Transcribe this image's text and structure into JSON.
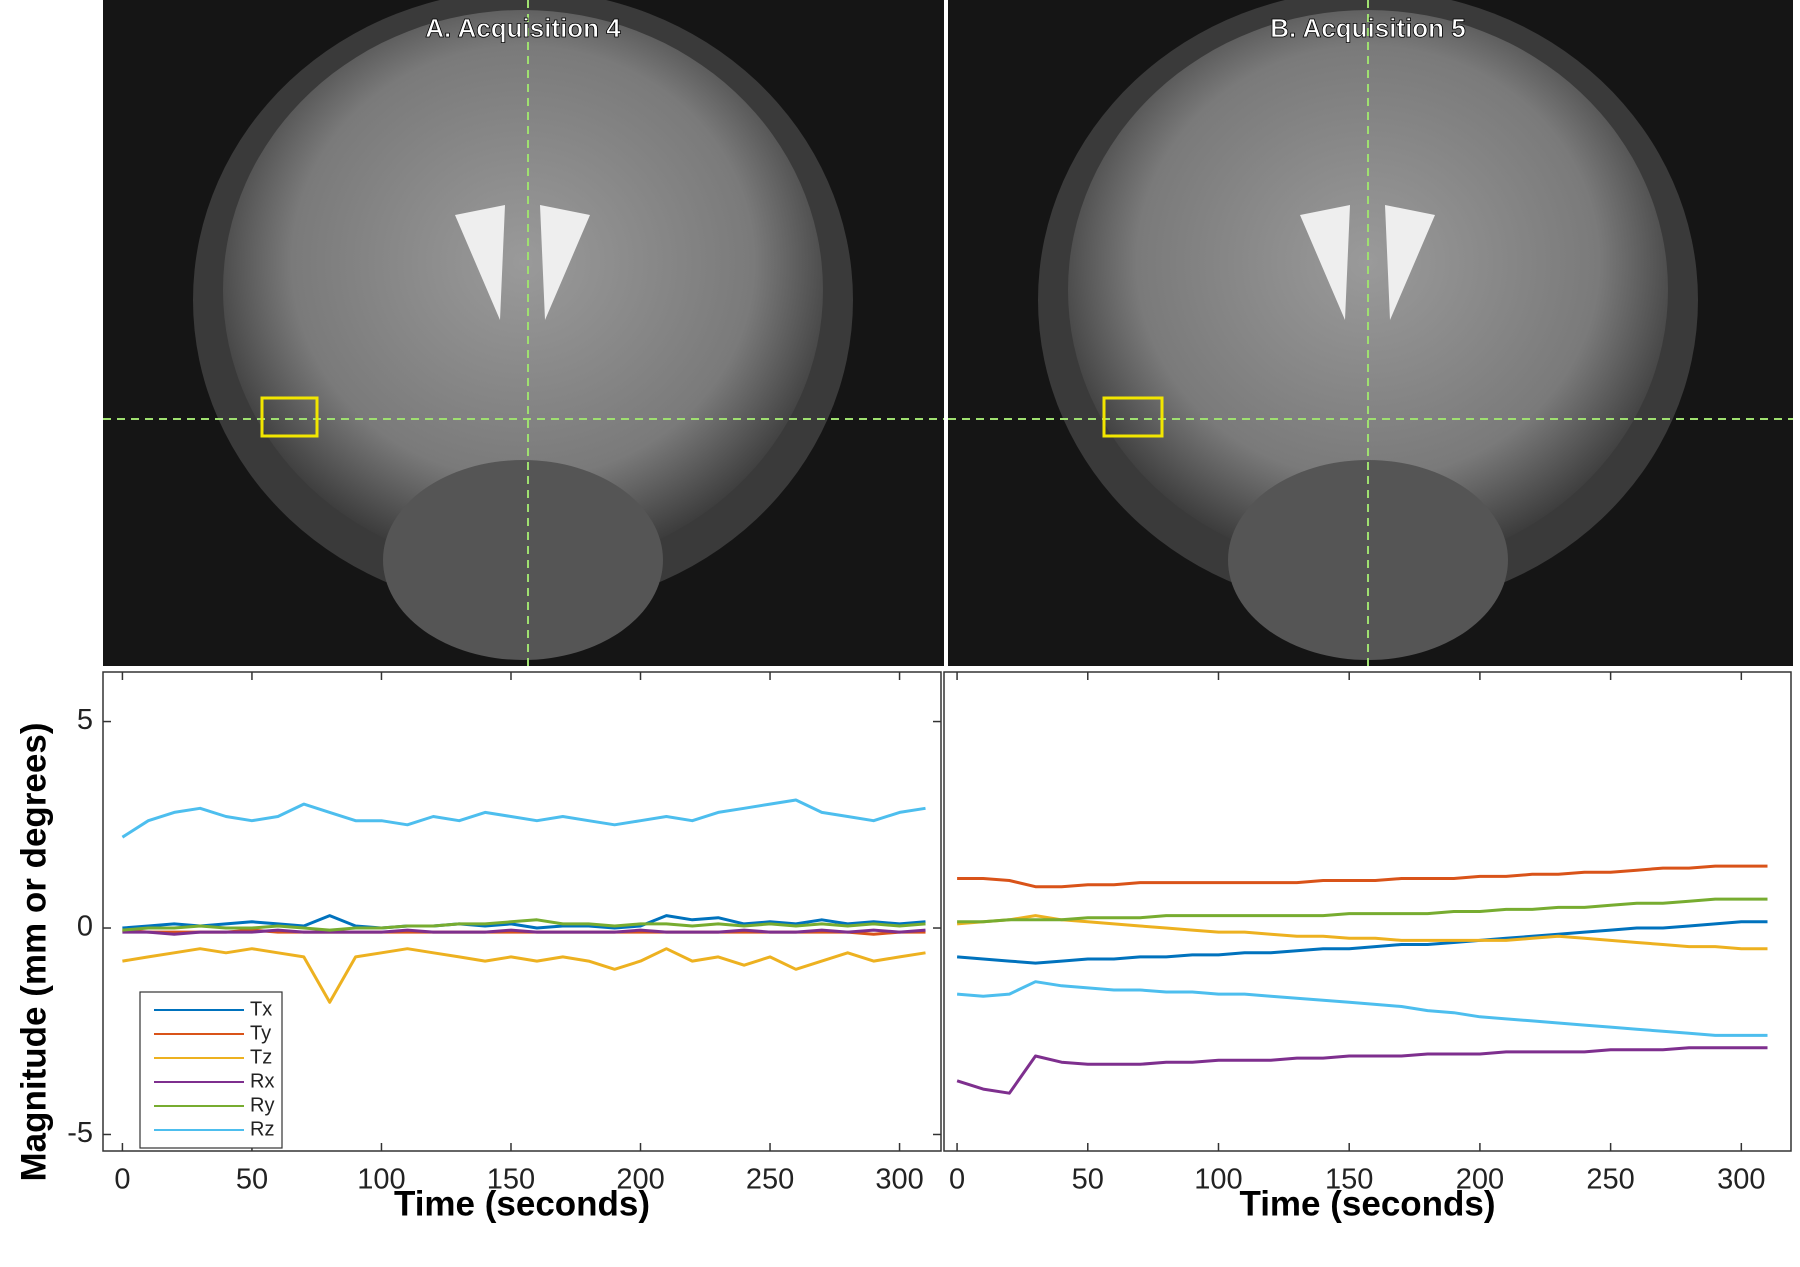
{
  "images": [
    {
      "title": "A. Acquisition 4"
    },
    {
      "title": "B. Acquisition 5"
    }
  ],
  "chart_data": [
    {
      "type": "line",
      "ylabel": "Magnitude (mm or degrees)",
      "xlabel": "Time (seconds)",
      "xlim": [
        -7.5,
        316
      ],
      "xticks": [
        0,
        50,
        100,
        150,
        200,
        250,
        300
      ],
      "ylim": [
        -5.4,
        6.2
      ],
      "yticks": [
        -5,
        0,
        5
      ],
      "legend": "lower left",
      "x": [
        0,
        10,
        20,
        30,
        40,
        50,
        60,
        70,
        80,
        90,
        100,
        110,
        120,
        130,
        140,
        150,
        160,
        170,
        180,
        190,
        200,
        210,
        220,
        230,
        240,
        250,
        260,
        270,
        280,
        290,
        300,
        310
      ],
      "series": [
        {
          "name": "Tx",
          "color": "#0072bd",
          "values": [
            0,
            0.05,
            0.1,
            0.05,
            0.1,
            0.15,
            0.1,
            0.05,
            0.3,
            0.05,
            0,
            0.05,
            0.05,
            0.1,
            0.05,
            0.1,
            0,
            0.05,
            0.05,
            0,
            0.05,
            0.3,
            0.2,
            0.25,
            0.1,
            0.15,
            0.1,
            0.2,
            0.1,
            0.15,
            0.1,
            0.15
          ]
        },
        {
          "name": "Ty",
          "color": "#d95319",
          "values": [
            -0.05,
            -0.1,
            -0.1,
            -0.1,
            -0.1,
            -0.05,
            -0.1,
            -0.1,
            -0.1,
            -0.1,
            -0.1,
            -0.1,
            -0.1,
            -0.1,
            -0.1,
            -0.1,
            -0.1,
            -0.1,
            -0.1,
            -0.1,
            -0.1,
            -0.1,
            -0.1,
            -0.1,
            -0.1,
            -0.1,
            -0.1,
            -0.1,
            -0.1,
            -0.15,
            -0.1,
            -0.1
          ]
        },
        {
          "name": "Tz",
          "color": "#edb120",
          "values": [
            -0.8,
            -0.7,
            -0.6,
            -0.5,
            -0.6,
            -0.5,
            -0.6,
            -0.7,
            -1.8,
            -0.7,
            -0.6,
            -0.5,
            -0.6,
            -0.7,
            -0.8,
            -0.7,
            -0.8,
            -0.7,
            -0.8,
            -1.0,
            -0.8,
            -0.5,
            -0.8,
            -0.7,
            -0.9,
            -0.7,
            -1.0,
            -0.8,
            -0.6,
            -0.8,
            -0.7,
            -0.6
          ]
        },
        {
          "name": "Rx",
          "color": "#7e2f8e",
          "values": [
            -0.1,
            -0.1,
            -0.15,
            -0.1,
            -0.1,
            -0.1,
            -0.05,
            -0.1,
            -0.1,
            -0.1,
            -0.1,
            -0.05,
            -0.1,
            -0.1,
            -0.1,
            -0.05,
            -0.1,
            -0.1,
            -0.1,
            -0.1,
            -0.05,
            -0.1,
            -0.1,
            -0.1,
            -0.05,
            -0.1,
            -0.1,
            -0.05,
            -0.1,
            -0.05,
            -0.1,
            -0.05
          ]
        },
        {
          "name": "Ry",
          "color": "#77ac30",
          "values": [
            -0.05,
            0,
            0,
            0.05,
            0,
            0,
            0.05,
            0,
            -0.05,
            0,
            0,
            0.05,
            0.05,
            0.1,
            0.1,
            0.15,
            0.2,
            0.1,
            0.1,
            0.05,
            0.1,
            0.1,
            0.05,
            0.1,
            0.05,
            0.1,
            0.05,
            0.1,
            0.05,
            0.1,
            0.05,
            0.1
          ]
        },
        {
          "name": "Rz",
          "color": "#4dbeee",
          "values": [
            2.2,
            2.6,
            2.8,
            2.9,
            2.7,
            2.6,
            2.7,
            3.0,
            2.8,
            2.6,
            2.6,
            2.5,
            2.7,
            2.6,
            2.8,
            2.7,
            2.6,
            2.7,
            2.6,
            2.5,
            2.6,
            2.7,
            2.6,
            2.8,
            2.9,
            3.0,
            3.1,
            2.8,
            2.7,
            2.6,
            2.8,
            2.9
          ]
        }
      ]
    },
    {
      "type": "line",
      "xlabel": "Time (seconds)",
      "xlim": [
        -5,
        319
      ],
      "xticks": [
        0,
        50,
        100,
        150,
        200,
        250,
        300
      ],
      "ylim": [
        -5.4,
        6.2
      ],
      "x": [
        0,
        10,
        20,
        30,
        40,
        50,
        60,
        70,
        80,
        90,
        100,
        110,
        120,
        130,
        140,
        150,
        160,
        170,
        180,
        190,
        200,
        210,
        220,
        230,
        240,
        250,
        260,
        270,
        280,
        290,
        300,
        310
      ],
      "series": [
        {
          "color": "#0072bd",
          "values": [
            -0.7,
            -0.75,
            -0.8,
            -0.85,
            -0.8,
            -0.75,
            -0.75,
            -0.7,
            -0.7,
            -0.65,
            -0.65,
            -0.6,
            -0.6,
            -0.55,
            -0.5,
            -0.5,
            -0.45,
            -0.4,
            -0.4,
            -0.35,
            -0.3,
            -0.25,
            -0.2,
            -0.15,
            -0.1,
            -0.05,
            0,
            0,
            0.05,
            0.1,
            0.15,
            0.15
          ]
        },
        {
          "color": "#d95319",
          "values": [
            1.2,
            1.2,
            1.15,
            1.0,
            1.0,
            1.05,
            1.05,
            1.1,
            1.1,
            1.1,
            1.1,
            1.1,
            1.1,
            1.1,
            1.15,
            1.15,
            1.15,
            1.2,
            1.2,
            1.2,
            1.25,
            1.25,
            1.3,
            1.3,
            1.35,
            1.35,
            1.4,
            1.45,
            1.45,
            1.5,
            1.5,
            1.5
          ]
        },
        {
          "color": "#edb120",
          "values": [
            0.1,
            0.15,
            0.2,
            0.3,
            0.2,
            0.15,
            0.1,
            0.05,
            0,
            -0.05,
            -0.1,
            -0.1,
            -0.15,
            -0.2,
            -0.2,
            -0.25,
            -0.25,
            -0.3,
            -0.3,
            -0.3,
            -0.3,
            -0.3,
            -0.25,
            -0.2,
            -0.25,
            -0.3,
            -0.35,
            -0.4,
            -0.45,
            -0.45,
            -0.5,
            -0.5
          ]
        },
        {
          "color": "#7e2f8e",
          "values": [
            -3.7,
            -3.9,
            -4.0,
            -3.1,
            -3.25,
            -3.3,
            -3.3,
            -3.3,
            -3.25,
            -3.25,
            -3.2,
            -3.2,
            -3.2,
            -3.15,
            -3.15,
            -3.1,
            -3.1,
            -3.1,
            -3.05,
            -3.05,
            -3.05,
            -3.0,
            -3.0,
            -3.0,
            -3.0,
            -2.95,
            -2.95,
            -2.95,
            -2.9,
            -2.9,
            -2.9,
            -2.9
          ]
        },
        {
          "color": "#77ac30",
          "values": [
            0.15,
            0.15,
            0.2,
            0.2,
            0.2,
            0.25,
            0.25,
            0.25,
            0.3,
            0.3,
            0.3,
            0.3,
            0.3,
            0.3,
            0.3,
            0.35,
            0.35,
            0.35,
            0.35,
            0.4,
            0.4,
            0.45,
            0.45,
            0.5,
            0.5,
            0.55,
            0.6,
            0.6,
            0.65,
            0.7,
            0.7,
            0.7
          ]
        },
        {
          "color": "#4dbeee",
          "values": [
            -1.6,
            -1.65,
            -1.6,
            -1.3,
            -1.4,
            -1.45,
            -1.5,
            -1.5,
            -1.55,
            -1.55,
            -1.6,
            -1.6,
            -1.65,
            -1.7,
            -1.75,
            -1.8,
            -1.85,
            -1.9,
            -2.0,
            -2.05,
            -2.15,
            -2.2,
            -2.25,
            -2.3,
            -2.35,
            -2.4,
            -2.45,
            -2.5,
            -2.55,
            -2.6,
            -2.6,
            -2.6
          ]
        }
      ]
    }
  ]
}
